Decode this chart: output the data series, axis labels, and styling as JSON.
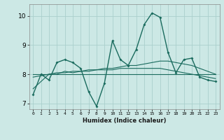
{
  "xlabel": "Humidex (Indice chaleur)",
  "ylabel": "",
  "bg_color": "#cce8e5",
  "grid_color": "#aacfcc",
  "line_color": "#1a6b5e",
  "xlim": [
    -0.5,
    23.5
  ],
  "ylim": [
    6.8,
    10.4
  ],
  "yticks": [
    7,
    8,
    9,
    10
  ],
  "xticks": [
    0,
    1,
    2,
    3,
    4,
    5,
    6,
    7,
    8,
    9,
    10,
    11,
    12,
    13,
    14,
    15,
    16,
    17,
    18,
    19,
    20,
    21,
    22,
    23
  ],
  "series": [
    [
      7.3,
      8.0,
      7.8,
      8.4,
      8.5,
      8.4,
      8.2,
      7.4,
      6.9,
      7.7,
      9.15,
      8.5,
      8.3,
      8.85,
      9.7,
      10.1,
      9.95,
      8.75,
      8.05,
      8.5,
      8.55,
      7.9,
      7.8,
      7.75
    ],
    [
      7.5,
      7.75,
      8.0,
      8.0,
      8.1,
      8.05,
      8.1,
      8.15,
      8.15,
      8.2,
      8.2,
      8.25,
      8.3,
      8.3,
      8.35,
      8.4,
      8.45,
      8.45,
      8.4,
      8.35,
      8.3,
      8.2,
      8.1,
      8.0
    ],
    [
      8.0,
      8.0,
      8.0,
      8.0,
      8.0,
      8.0,
      8.0,
      8.0,
      8.0,
      8.0,
      8.0,
      8.0,
      8.0,
      8.0,
      8.0,
      8.0,
      8.0,
      8.0,
      8.0,
      8.0,
      8.0,
      8.0,
      8.0,
      8.0
    ],
    [
      7.9,
      7.95,
      8.0,
      8.05,
      8.05,
      8.1,
      8.1,
      8.1,
      8.15,
      8.15,
      8.15,
      8.2,
      8.2,
      8.2,
      8.2,
      8.2,
      8.2,
      8.15,
      8.1,
      8.05,
      8.0,
      7.95,
      7.9,
      7.85
    ]
  ]
}
